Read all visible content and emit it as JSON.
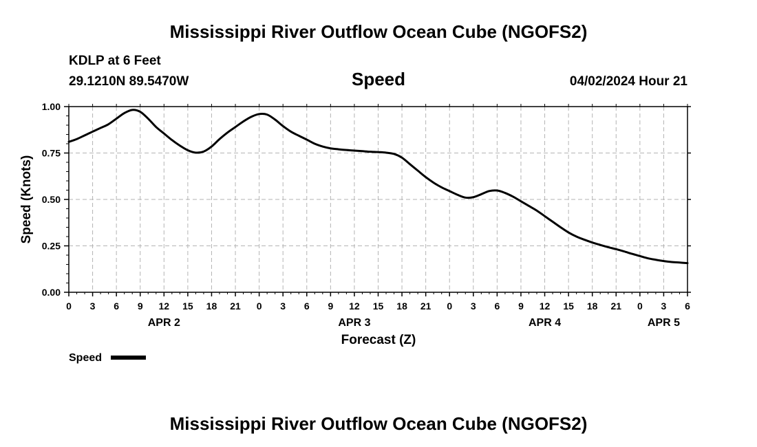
{
  "header": {
    "title_top": "Mississippi River Outflow Ocean Cube (NGOFS2)",
    "title_bottom": "Mississippi River Outflow Ocean Cube (NGOFS2)",
    "station": "KDLP at 6 Feet",
    "coordinates": "29.1210N  89.5470W",
    "timestamp": "04/02/2024 Hour 21"
  },
  "legend": {
    "label": "Speed"
  },
  "chart_data": {
    "type": "line",
    "title": "Speed",
    "xlabel": "Forecast (Z)",
    "ylabel": "Speed (Knots)",
    "xlim": [
      0,
      78
    ],
    "ylim": [
      0,
      1.0
    ],
    "grid": true,
    "legend_position": "bottom-left",
    "x_tick_values": [
      0,
      3,
      6,
      9,
      12,
      15,
      18,
      21,
      24,
      27,
      30,
      33,
      36,
      39,
      42,
      45,
      48,
      51,
      54,
      57,
      60,
      63,
      66,
      69,
      72,
      75,
      78
    ],
    "x_tick_labels": [
      "0",
      "3",
      "6",
      "9",
      "12",
      "15",
      "18",
      "21",
      "0",
      "3",
      "6",
      "9",
      "12",
      "15",
      "18",
      "21",
      "0",
      "3",
      "6",
      "9",
      "12",
      "15",
      "18",
      "21",
      "0",
      "3",
      "6"
    ],
    "y_tick_values": [
      0,
      0.25,
      0.5,
      0.75,
      1.0
    ],
    "y_tick_labels": [
      "0.00",
      "0.25",
      "0.50",
      "0.75",
      "1.00"
    ],
    "date_labels": [
      {
        "text": "APR 2",
        "x": 12
      },
      {
        "text": "APR 3",
        "x": 36
      },
      {
        "text": "APR 4",
        "x": 60
      },
      {
        "text": "APR 5",
        "x": 75
      }
    ],
    "series": [
      {
        "name": "Speed",
        "color": "#000000",
        "x": [
          0,
          1,
          2,
          3,
          4,
          5,
          6,
          7,
          8,
          9,
          10,
          11,
          12,
          13,
          14,
          15,
          16,
          17,
          18,
          19,
          20,
          21,
          22,
          23,
          24,
          25,
          26,
          27,
          28,
          29,
          30,
          31,
          32,
          33,
          34,
          35,
          36,
          37,
          38,
          39,
          40,
          41,
          42,
          43,
          44,
          45,
          46,
          47,
          48,
          49,
          50,
          51,
          52,
          53,
          54,
          55,
          56,
          57,
          58,
          59,
          60,
          61,
          62,
          63,
          64,
          65,
          66,
          67,
          68,
          69,
          70,
          71,
          72,
          73,
          74,
          75,
          76,
          77,
          78
        ],
        "values": [
          0.81,
          0.825,
          0.845,
          0.865,
          0.885,
          0.905,
          0.935,
          0.965,
          0.982,
          0.972,
          0.935,
          0.89,
          0.855,
          0.82,
          0.79,
          0.765,
          0.752,
          0.758,
          0.785,
          0.825,
          0.86,
          0.89,
          0.92,
          0.945,
          0.96,
          0.957,
          0.93,
          0.895,
          0.865,
          0.843,
          0.822,
          0.8,
          0.785,
          0.775,
          0.77,
          0.766,
          0.763,
          0.76,
          0.757,
          0.755,
          0.752,
          0.745,
          0.725,
          0.69,
          0.655,
          0.62,
          0.59,
          0.565,
          0.545,
          0.525,
          0.51,
          0.512,
          0.528,
          0.545,
          0.548,
          0.535,
          0.515,
          0.49,
          0.465,
          0.44,
          0.41,
          0.38,
          0.35,
          0.322,
          0.3,
          0.283,
          0.268,
          0.255,
          0.243,
          0.232,
          0.22,
          0.207,
          0.195,
          0.183,
          0.175,
          0.168,
          0.163,
          0.16,
          0.157
        ]
      }
    ]
  }
}
